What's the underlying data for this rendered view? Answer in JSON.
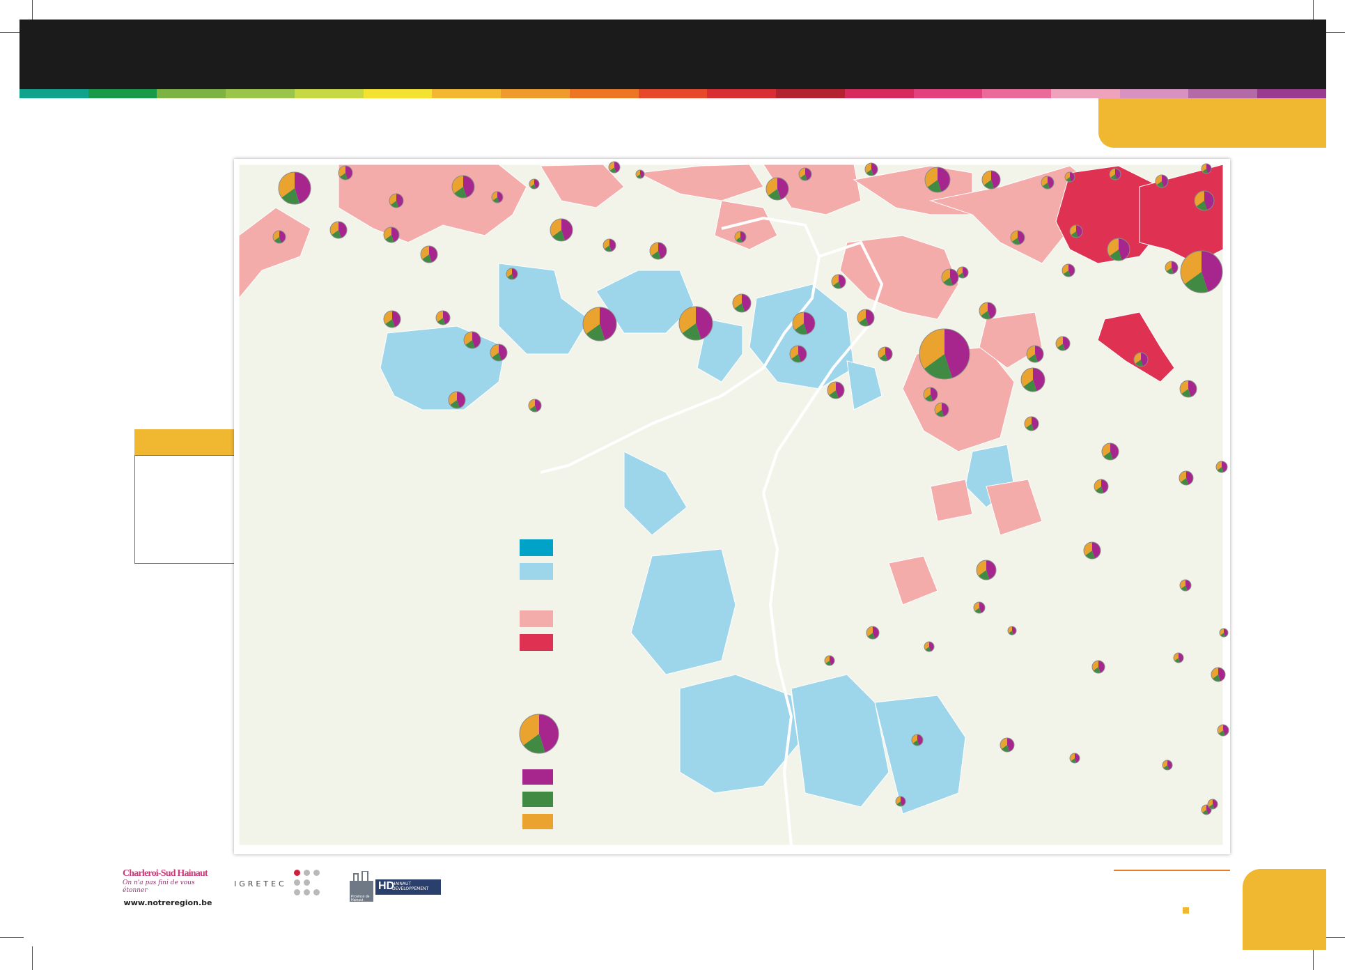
{
  "document": {
    "website": "www.notreregion.be",
    "logos": {
      "charleroi_name": "Charleroi-Sud Hainaut",
      "charleroi_tagline": "On n'a pas fini de vous étonner",
      "igretec": "IGRETEC",
      "province_name": "Province de Hainaut",
      "hd_mark": "HD",
      "hd_name": "HAINAUT DEVELOPPEMENT"
    }
  },
  "colors": {
    "header_bg": "#1b1b1b",
    "accent_yellow": "#f0b731",
    "strip": [
      "#10a38c",
      "#189a48",
      "#7cb342",
      "#9bc44a",
      "#c6d844",
      "#f4e231",
      "#f3b830",
      "#ef9a2c",
      "#ec7623",
      "#e74829",
      "#d92d33",
      "#b42230",
      "#d8295f",
      "#e4407e",
      "#ea6a99",
      "#efa2bb",
      "#d892c2",
      "#b56aa8",
      "#9b3b8f"
    ],
    "class_1": "#00a2c8",
    "class_2": "#9dd5ea",
    "class_3": "#f2f4ea",
    "class_4": "#f4acab",
    "class_5": "#df3253",
    "slice_1": "#a7268d",
    "slice_2": "#418a43",
    "slice_3": "#e9a32e"
  },
  "map": {
    "legend_classes": [
      "class-1",
      "class-2",
      "class-3",
      "class-4",
      "class-5"
    ],
    "pie_slices": [
      "slice-1",
      "slice-2",
      "slice-3"
    ]
  }
}
